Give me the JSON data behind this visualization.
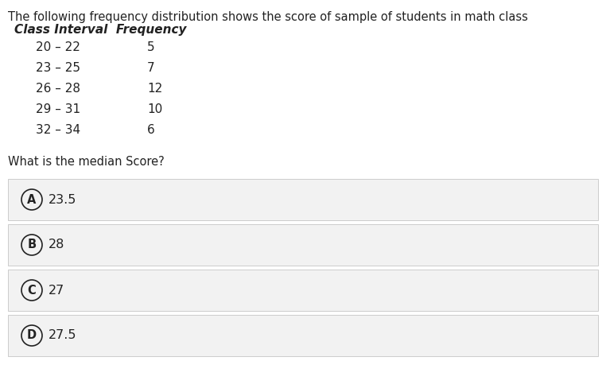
{
  "title_line1": "The following frequency distribution shows the score of sample of students in math class",
  "header": "Class Interval  Frequency",
  "rows": [
    {
      "interval": "20 – 22",
      "frequency": "5"
    },
    {
      "interval": "23 – 25",
      "frequency": "7"
    },
    {
      "interval": "26 – 28",
      "frequency": "12"
    },
    {
      "interval": "29 – 31",
      "frequency": "10"
    },
    {
      "interval": "32 – 34",
      "frequency": "6"
    }
  ],
  "question": "What is the median Score?",
  "choices": [
    {
      "label": "A",
      "text": "23.5"
    },
    {
      "label": "B",
      "text": "28"
    },
    {
      "label": "C",
      "text": "27"
    },
    {
      "label": "D",
      "text": "27.5"
    }
  ],
  "bg_color": "#ffffff",
  "choice_bg_color": "#f2f2f2",
  "choice_border_color": "#cccccc",
  "text_color": "#222222",
  "title_fontsize": 10.5,
  "header_fontsize": 11,
  "row_fontsize": 11,
  "question_fontsize": 10.5,
  "choice_fontsize": 11.5,
  "fig_width": 7.62,
  "fig_height": 4.93,
  "dpi": 100
}
